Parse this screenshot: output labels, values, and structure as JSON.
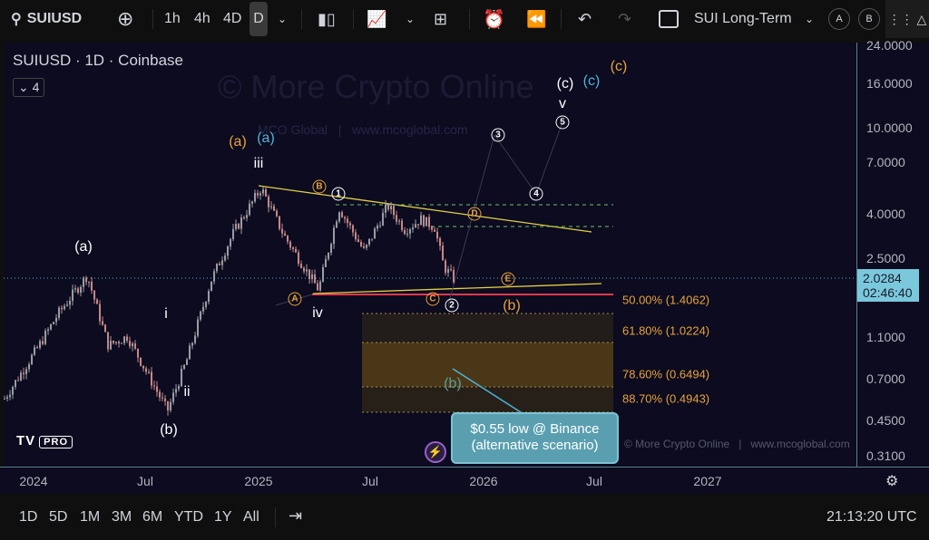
{
  "toolbar": {
    "symbol": "SUIUSD",
    "intervals": [
      "1h",
      "4h",
      "4D",
      "D"
    ],
    "active_interval": "D",
    "layout_name": "SUI Long-Term",
    "circle_a": "A",
    "circle_b": "B"
  },
  "legend": {
    "title": "SUIUSD · 1D · Coinbase",
    "collapse_count": "4"
  },
  "watermark": {
    "main": "© More Crypto Online",
    "sub": "MCO Global   |   www.mcoglobal.com",
    "bottom": "© More Crypto Online   |   www.mcoglobal.com",
    "logo": "TV PRO"
  },
  "price_axis": {
    "ticks": [
      "24.0000",
      "16.0000",
      "10.0000",
      "7.0000",
      "4.0000",
      "2.5000",
      "1.1000",
      "0.7000",
      "0.4500",
      "0.3100"
    ],
    "last_price": "2.0284",
    "countdown": "02:46:40",
    "scale": "log"
  },
  "time_axis": {
    "ticks": [
      "2024",
      "Jul",
      "2025",
      "Jul",
      "2026",
      "Jul",
      "2027"
    ]
  },
  "fib_levels": [
    "50.00% (1.4062)",
    "61.80% (1.0224)",
    "78.60% (0.6494)",
    "88.70% (0.4943)"
  ],
  "waves": {
    "a_w": "(a)",
    "i": "i",
    "ii": "ii",
    "b_w": "(b)",
    "iii": "iii",
    "a_o": "(a)",
    "a_c": "(a)",
    "iv": "iv",
    "A": "A",
    "B": "B",
    "1": "1",
    "C": "C",
    "2": "2",
    "D": "D",
    "E": "E",
    "b_o": "(b)",
    "3": "3",
    "4": "4",
    "5": "5",
    "v": "v",
    "c_w": "(c)",
    "c_c": "(c)",
    "c_o": "(c)",
    "b_t": "(b)"
  },
  "callout": {
    "line1": "$0.55 low @ Binance",
    "line2": "(alternative scenario)"
  },
  "price_path": [
    [
      "2023-11-15",
      0.57
    ],
    [
      "2024-01-10",
      1.0
    ],
    [
      "2024-02-10",
      1.4
    ],
    [
      "2024-03-28",
      2.1
    ],
    [
      "2024-05-01",
      1.0
    ],
    [
      "2024-06-01",
      1.1
    ],
    [
      "2024-08-05",
      0.5
    ],
    [
      "2024-09-05",
      0.85
    ],
    [
      "2024-10-15",
      2.0
    ],
    [
      "2024-11-20",
      3.3
    ],
    [
      "2025-01-04",
      5.3
    ],
    [
      "2025-02-10",
      3.2
    ],
    [
      "2025-03-10",
      2.4
    ],
    [
      "2025-04-07",
      1.8
    ],
    [
      "2025-05-10",
      4.3
    ],
    [
      "2025-06-20",
      2.7
    ],
    [
      "2025-07-28",
      4.4
    ],
    [
      "2025-08-25",
      3.4
    ],
    [
      "2025-09-20",
      3.8
    ],
    [
      "2025-10-12",
      3.5
    ],
    [
      "2025-10-27",
      2.3
    ],
    [
      "2025-11-12",
      2.03
    ]
  ],
  "bottom_bar": {
    "ranges": [
      "1D",
      "5D",
      "1M",
      "3M",
      "6M",
      "YTD",
      "1Y",
      "All"
    ],
    "clock": "21:13:20 UTC"
  },
  "colors": {
    "background": "#0c0b1f",
    "orange": "#e8a33a",
    "cyan": "#4fb3d9",
    "candle_up": "#9aa0a6",
    "candle_down": "#c98a8a",
    "trendline": "#e1d146",
    "support": "#e2384c"
  }
}
